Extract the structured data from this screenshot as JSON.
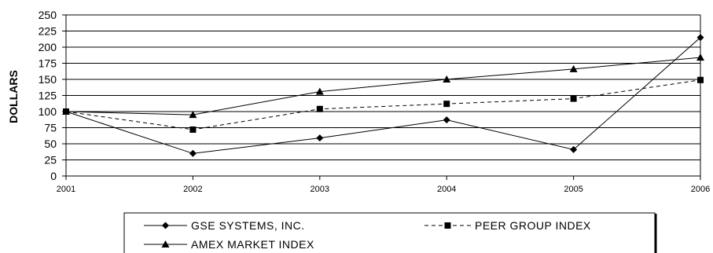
{
  "chart_data": {
    "type": "line",
    "title": "",
    "xlabel": "",
    "ylabel": "DOLLARS",
    "x": [
      "2001",
      "2002",
      "2003",
      "2004",
      "2005",
      "2006"
    ],
    "ylim": [
      0,
      250
    ],
    "yticks": [
      0,
      25,
      50,
      75,
      100,
      125,
      150,
      175,
      200,
      225,
      250
    ],
    "grid": true,
    "legend_position": "bottom",
    "series": [
      {
        "name": "GSE SYSTEMS, INC.",
        "values": [
          100,
          35,
          59,
          87,
          41,
          215
        ],
        "marker": "diamond",
        "line": "solid"
      },
      {
        "name": "PEER GROUP INDEX",
        "values": [
          100,
          72,
          104,
          112,
          120,
          149
        ],
        "marker": "square",
        "line": "dashed"
      },
      {
        "name": "AMEX MARKET INDEX",
        "values": [
          100,
          95,
          131,
          150,
          166,
          184
        ],
        "marker": "triangle",
        "line": "solid"
      }
    ]
  }
}
